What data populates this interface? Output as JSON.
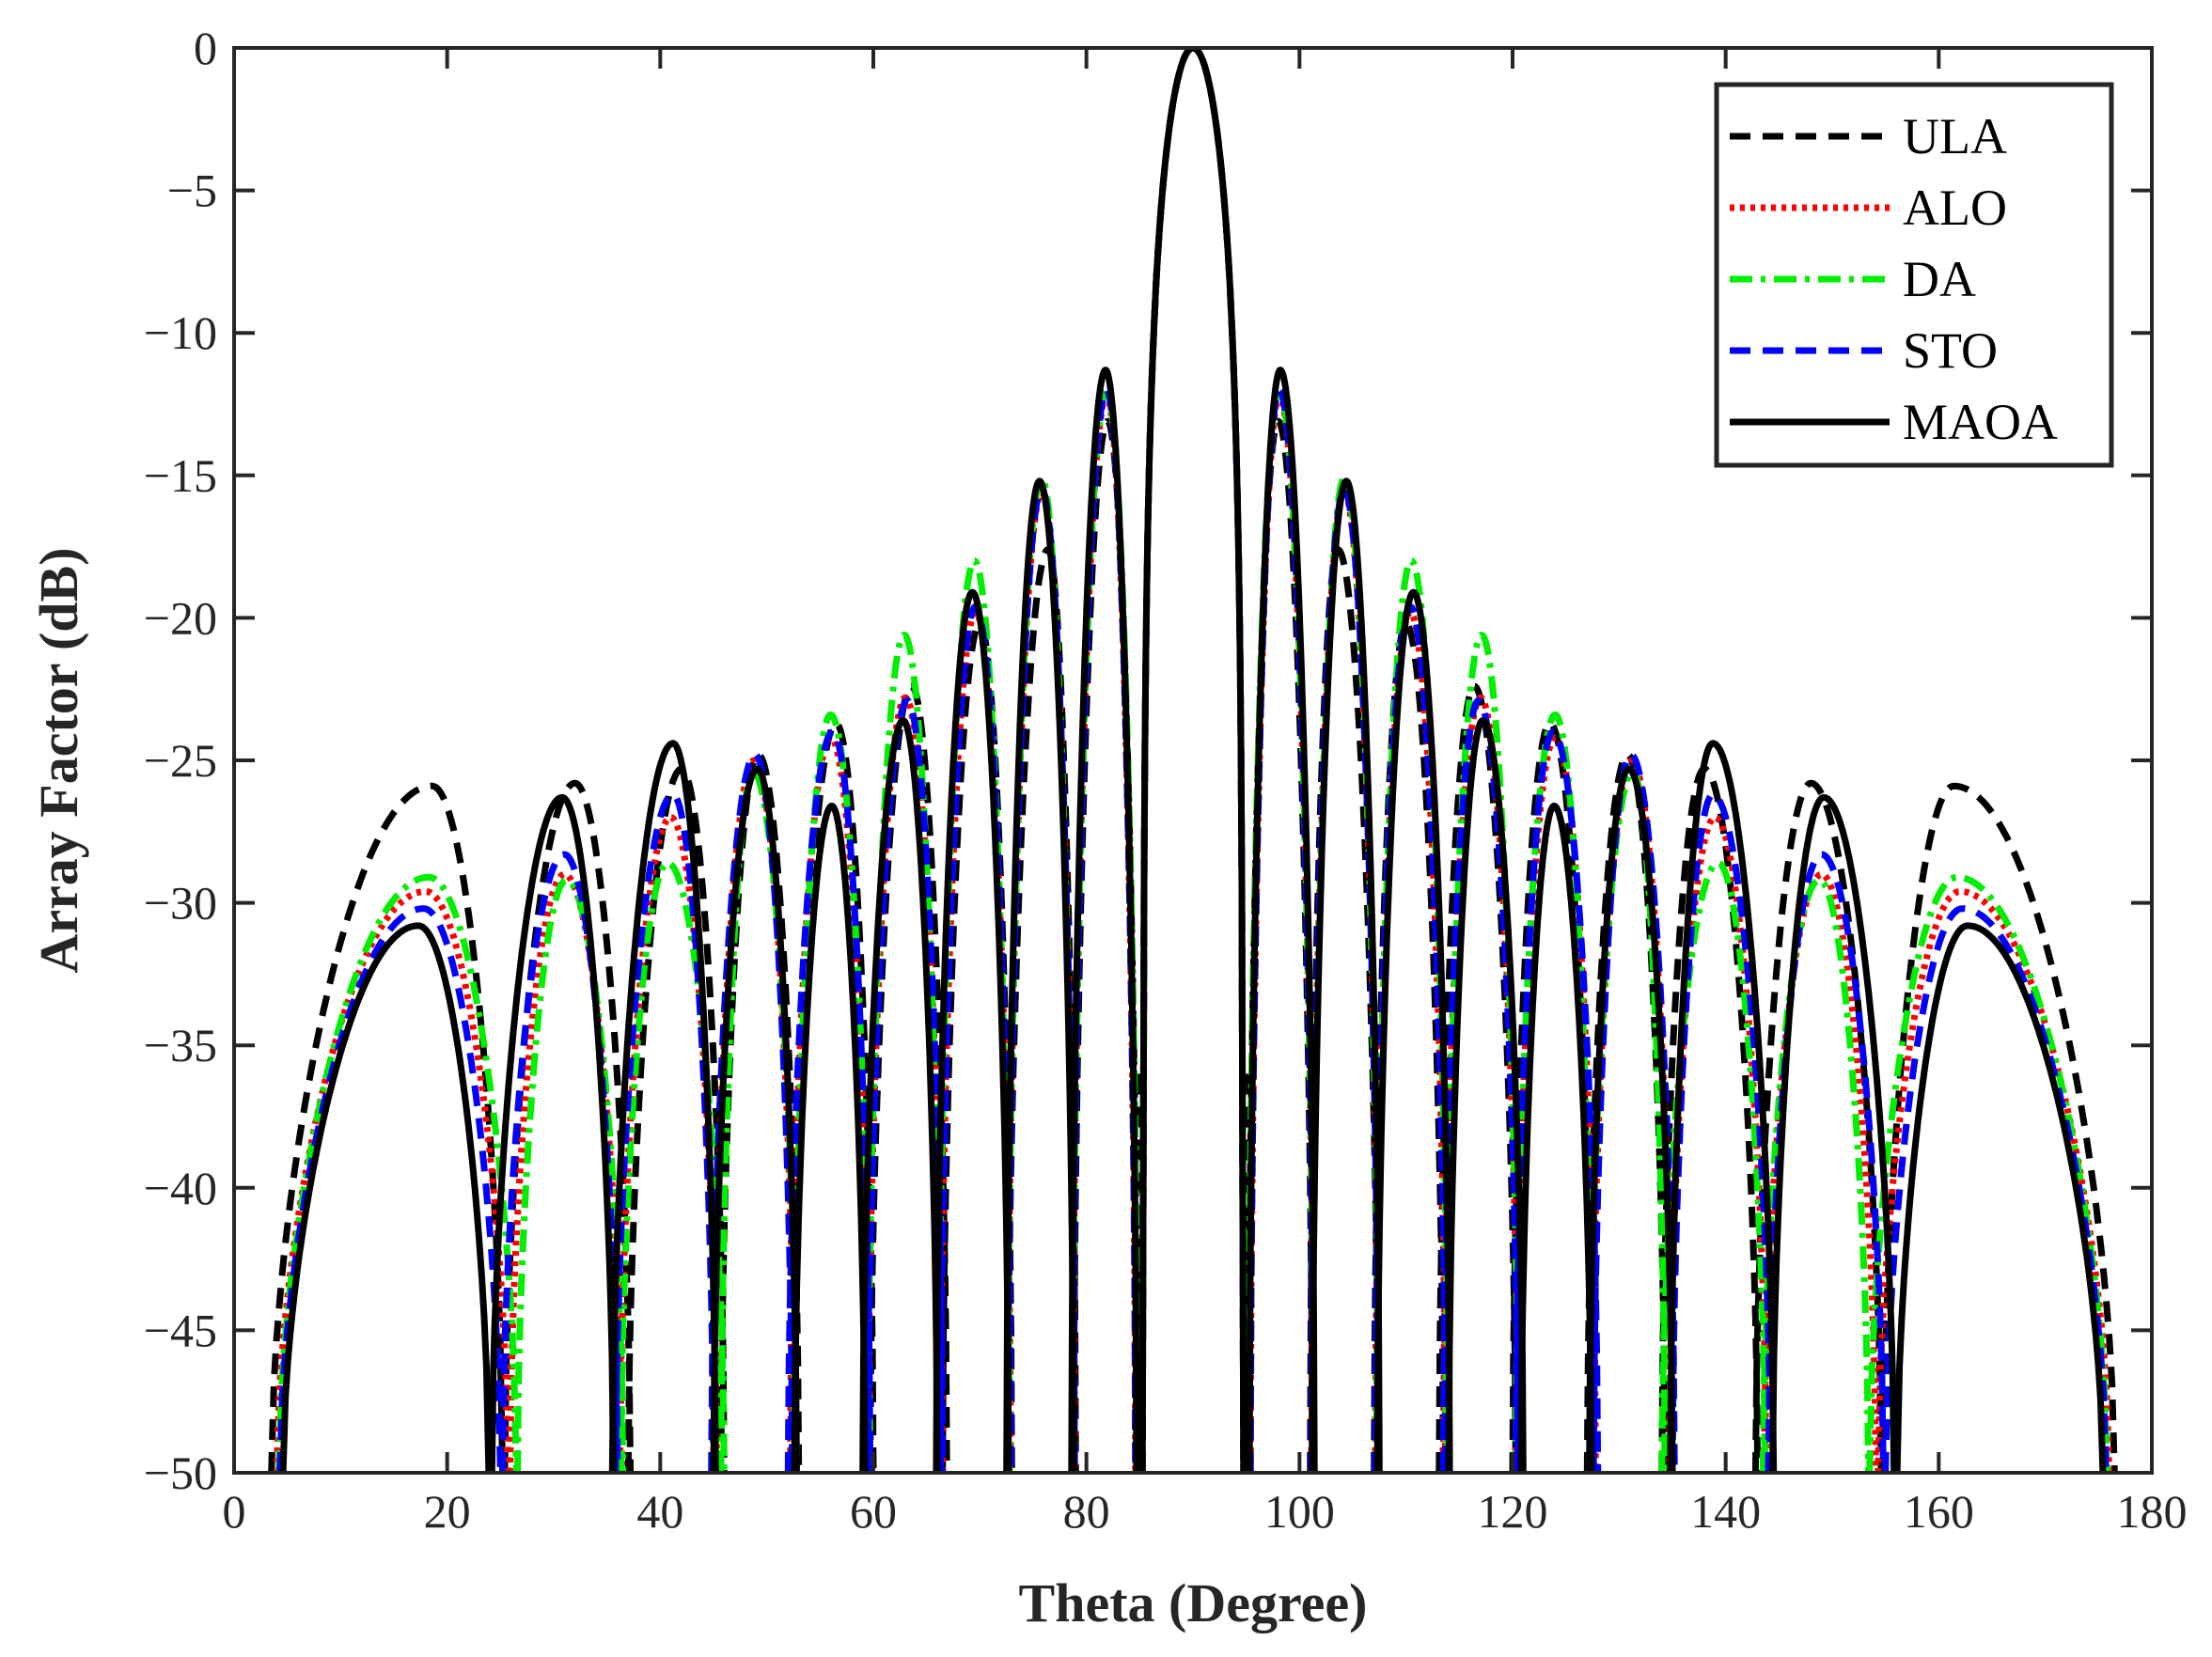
{
  "chart_data": {
    "type": "line",
    "title": "",
    "xlabel": "Theta (Degree)",
    "ylabel": "Array Factor (dB)",
    "xlim": [
      0,
      180
    ],
    "ylim": [
      -50,
      0
    ],
    "xticks": [
      0,
      20,
      40,
      60,
      80,
      100,
      120,
      140,
      160,
      180
    ],
    "yticks": [
      0,
      -5,
      -10,
      -15,
      -20,
      -25,
      -30,
      -35,
      -40,
      -45,
      -50
    ],
    "ytick_labels": [
      "0",
      "−5",
      "−10",
      "−15",
      "−20",
      "−25",
      "−30",
      "−35",
      "−40",
      "−45",
      "−50"
    ],
    "grid": false,
    "legend_position": "top-right",
    "main_lobe": {
      "center": 90,
      "half_width": 4.7
    },
    "series": [
      {
        "name": "ULA",
        "color": "#000000",
        "style": "dashed",
        "lobes": [
          {
            "l": 3.5,
            "r": 25.2,
            "peak": -25.9,
            "c": 18.6
          },
          {
            "l": 25.4,
            "r": 37.2,
            "peak": -25.8,
            "c": 32.0
          },
          {
            "l": 37.0,
            "r": 46.0,
            "peak": -25.3,
            "c": 42.0
          },
          {
            "l": 45.7,
            "r": 53.0,
            "peak": -24.8,
            "c": 49.2
          },
          {
            "l": 52.5,
            "r": 60.0,
            "peak": -23.7,
            "c": 56.5
          },
          {
            "l": 59.7,
            "r": 66.9,
            "peak": -22.4,
            "c": 63.6
          },
          {
            "l": 66.5,
            "r": 73.0,
            "peak": -20.2,
            "c": 70.0
          },
          {
            "l": 72.6,
            "r": 79.0,
            "peak": -17.6,
            "c": 76.4
          },
          {
            "l": 78.8,
            "r": 84.8,
            "peak": -13.1,
            "c": 82.0
          },
          {
            "l": 95.2,
            "r": 101.2,
            "peak": -13.1,
            "c": 98.0
          },
          {
            "l": 101.0,
            "r": 107.4,
            "peak": -17.6,
            "c": 103.6
          },
          {
            "l": 107.0,
            "r": 113.5,
            "peak": -20.2,
            "c": 110.0
          },
          {
            "l": 113.1,
            "r": 120.3,
            "peak": -22.4,
            "c": 116.4
          },
          {
            "l": 120.0,
            "r": 127.5,
            "peak": -23.7,
            "c": 123.5
          },
          {
            "l": 127.0,
            "r": 134.3,
            "peak": -24.8,
            "c": 130.8
          },
          {
            "l": 134.0,
            "r": 143.0,
            "peak": -25.3,
            "c": 138.0
          },
          {
            "l": 142.8,
            "r": 154.6,
            "peak": -25.8,
            "c": 148.0
          },
          {
            "l": 154.8,
            "r": 176.5,
            "peak": -25.9,
            "c": 161.4
          }
        ],
        "nulls": [
          {
            "x": 84.8,
            "depth": -43.2
          },
          {
            "x": 95.2,
            "depth": -43.2
          }
        ]
      },
      {
        "name": "ALO",
        "color": "#ff0000",
        "style": "dotted",
        "lobes": [
          {
            "l": 4.0,
            "r": 25.7,
            "peak": -29.6,
            "c": 18.0
          },
          {
            "l": 25.9,
            "r": 36.4,
            "peak": -29.0,
            "c": 31.0
          },
          {
            "l": 36.2,
            "r": 45.3,
            "peak": -27.0,
            "c": 41.0
          },
          {
            "l": 45.0,
            "r": 52.6,
            "peak": -25.0,
            "c": 48.8
          },
          {
            "l": 52.2,
            "r": 59.7,
            "peak": -24.2,
            "c": 56.0
          },
          {
            "l": 59.5,
            "r": 66.5,
            "peak": -22.8,
            "c": 63.0
          },
          {
            "l": 66.3,
            "r": 72.9,
            "peak": -19.8,
            "c": 69.6
          },
          {
            "l": 72.6,
            "r": 78.9,
            "peak": -15.6,
            "c": 75.8
          },
          {
            "l": 78.7,
            "r": 84.6,
            "peak": -12.2,
            "c": 81.9
          },
          {
            "l": 95.4,
            "r": 101.3,
            "peak": -12.2,
            "c": 98.1
          },
          {
            "l": 101.1,
            "r": 107.4,
            "peak": -15.6,
            "c": 104.2
          },
          {
            "l": 107.1,
            "r": 113.7,
            "peak": -19.8,
            "c": 110.4
          },
          {
            "l": 113.5,
            "r": 120.5,
            "peak": -22.8,
            "c": 117.0
          },
          {
            "l": 120.3,
            "r": 127.8,
            "peak": -24.2,
            "c": 124.0
          },
          {
            "l": 127.4,
            "r": 135.0,
            "peak": -25.0,
            "c": 131.2
          },
          {
            "l": 134.7,
            "r": 143.8,
            "peak": -27.0,
            "c": 139.0
          },
          {
            "l": 143.6,
            "r": 154.1,
            "peak": -29.0,
            "c": 149.0
          },
          {
            "l": 154.3,
            "r": 176.0,
            "peak": -29.6,
            "c": 162.0
          }
        ],
        "nulls": []
      },
      {
        "name": "DA",
        "color": "#00ee00",
        "style": "dashdot",
        "lobes": [
          {
            "l": 4.2,
            "r": 26.5,
            "peak": -29.1,
            "c": 18.3
          },
          {
            "l": 26.6,
            "r": 36.5,
            "peak": -29.2,
            "c": 31.2
          },
          {
            "l": 36.3,
            "r": 46.0,
            "peak": -28.6,
            "c": 40.7
          },
          {
            "l": 45.7,
            "r": 52.8,
            "peak": -25.4,
            "c": 48.7
          },
          {
            "l": 52.5,
            "r": 59.7,
            "peak": -23.4,
            "c": 56.0
          },
          {
            "l": 59.5,
            "r": 66.3,
            "peak": -20.6,
            "c": 62.9
          },
          {
            "l": 66.1,
            "r": 72.8,
            "peak": -18.0,
            "c": 69.5
          },
          {
            "l": 72.6,
            "r": 78.8,
            "peak": -15.1,
            "c": 75.8
          },
          {
            "l": 78.7,
            "r": 84.8,
            "peak": -12.0,
            "c": 81.9
          },
          {
            "l": 95.2,
            "r": 101.3,
            "peak": -12.0,
            "c": 98.1
          },
          {
            "l": 101.2,
            "r": 107.4,
            "peak": -15.1,
            "c": 104.2
          },
          {
            "l": 107.2,
            "r": 113.9,
            "peak": -18.0,
            "c": 110.5
          },
          {
            "l": 113.7,
            "r": 120.5,
            "peak": -20.6,
            "c": 117.1
          },
          {
            "l": 120.3,
            "r": 127.5,
            "peak": -23.4,
            "c": 124.0
          },
          {
            "l": 127.2,
            "r": 134.3,
            "peak": -25.4,
            "c": 131.3
          },
          {
            "l": 134.0,
            "r": 143.7,
            "peak": -28.6,
            "c": 139.3
          },
          {
            "l": 143.5,
            "r": 153.4,
            "peak": -29.2,
            "c": 148.8
          },
          {
            "l": 153.5,
            "r": 175.8,
            "peak": -29.1,
            "c": 161.7
          }
        ],
        "nulls": []
      },
      {
        "name": "STO",
        "color": "#0000ff",
        "style": "dashed",
        "lobes": [
          {
            "l": 4.3,
            "r": 25.0,
            "peak": -30.2,
            "c": 17.8
          },
          {
            "l": 25.2,
            "r": 36.0,
            "peak": -28.3,
            "c": 31.0
          },
          {
            "l": 35.8,
            "r": 45.0,
            "peak": -26.2,
            "c": 41.2
          },
          {
            "l": 44.8,
            "r": 52.4,
            "peak": -24.8,
            "c": 48.9
          },
          {
            "l": 52.0,
            "r": 59.7,
            "peak": -24.0,
            "c": 56.2
          },
          {
            "l": 59.5,
            "r": 66.5,
            "peak": -22.9,
            "c": 63.2
          },
          {
            "l": 66.3,
            "r": 72.9,
            "peak": -19.6,
            "c": 69.6
          },
          {
            "l": 72.6,
            "r": 78.9,
            "peak": -15.5,
            "c": 75.8
          },
          {
            "l": 78.7,
            "r": 84.6,
            "peak": -12.0,
            "c": 81.9
          },
          {
            "l": 95.4,
            "r": 101.3,
            "peak": -12.0,
            "c": 98.1
          },
          {
            "l": 101.1,
            "r": 107.4,
            "peak": -15.5,
            "c": 104.2
          },
          {
            "l": 107.1,
            "r": 113.7,
            "peak": -19.6,
            "c": 110.4
          },
          {
            "l": 113.5,
            "r": 120.5,
            "peak": -22.9,
            "c": 116.8
          },
          {
            "l": 120.3,
            "r": 128.0,
            "peak": -24.0,
            "c": 123.8
          },
          {
            "l": 127.6,
            "r": 135.2,
            "peak": -24.8,
            "c": 131.1
          },
          {
            "l": 135.0,
            "r": 144.2,
            "peak": -26.2,
            "c": 138.8
          },
          {
            "l": 144.0,
            "r": 154.8,
            "peak": -28.3,
            "c": 149.0
          },
          {
            "l": 155.0,
            "r": 175.7,
            "peak": -30.2,
            "c": 162.2
          }
        ],
        "nulls": []
      },
      {
        "name": "MAOA",
        "color": "#000000",
        "style": "solid",
        "lobes": [
          {
            "l": 4.6,
            "r": 23.9,
            "peak": -30.8,
            "c": 17.3
          },
          {
            "l": 24.2,
            "r": 35.6,
            "peak": -26.3,
            "c": 30.8
          },
          {
            "l": 35.5,
            "r": 45.2,
            "peak": -24.4,
            "c": 41.2
          },
          {
            "l": 45.0,
            "r": 52.8,
            "peak": -25.3,
            "c": 49.1
          },
          {
            "l": 52.6,
            "r": 59.2,
            "peak": -26.6,
            "c": 56.1
          },
          {
            "l": 59.0,
            "r": 66.0,
            "peak": -23.6,
            "c": 62.8
          },
          {
            "l": 65.9,
            "r": 72.7,
            "peak": -19.1,
            "c": 69.3
          },
          {
            "l": 72.5,
            "r": 78.8,
            "peak": -15.2,
            "c": 75.6
          },
          {
            "l": 78.6,
            "r": 84.7,
            "peak": -11.3,
            "c": 81.8
          },
          {
            "l": 95.3,
            "r": 101.4,
            "peak": -11.3,
            "c": 98.2
          },
          {
            "l": 101.2,
            "r": 107.5,
            "peak": -15.2,
            "c": 104.4
          },
          {
            "l": 107.3,
            "r": 114.1,
            "peak": -19.1,
            "c": 110.7
          },
          {
            "l": 114.0,
            "r": 121.0,
            "peak": -23.6,
            "c": 117.2
          },
          {
            "l": 120.8,
            "r": 127.4,
            "peak": -26.6,
            "c": 123.9
          },
          {
            "l": 127.2,
            "r": 135.0,
            "peak": -25.3,
            "c": 130.9
          },
          {
            "l": 134.8,
            "r": 144.5,
            "peak": -24.4,
            "c": 138.8
          },
          {
            "l": 144.4,
            "r": 155.8,
            "peak": -26.3,
            "c": 149.2
          },
          {
            "l": 156.1,
            "r": 175.4,
            "peak": -30.8,
            "c": 162.7
          }
        ],
        "nulls": []
      }
    ]
  }
}
